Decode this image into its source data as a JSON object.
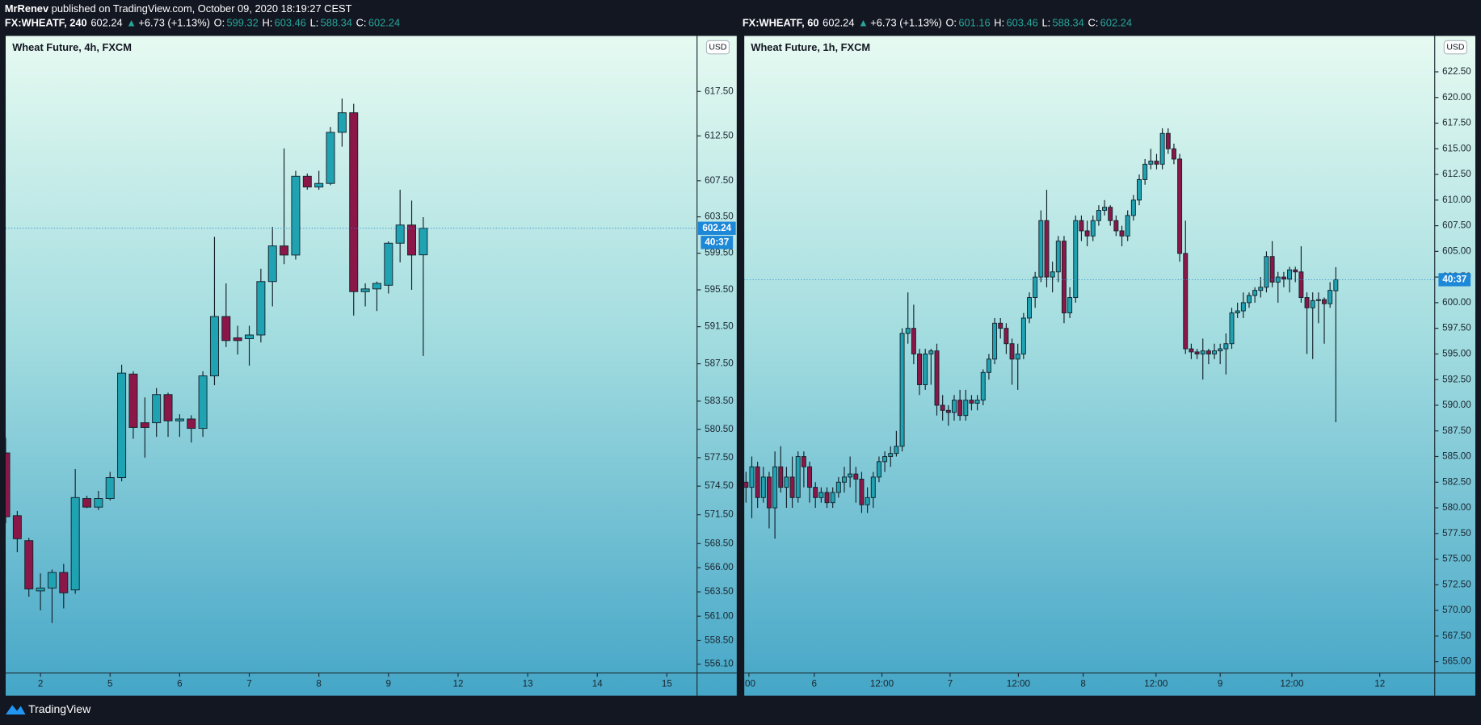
{
  "header": {
    "author": "MrRenev",
    "published": "published on TradingView.com, October 09, 2020 18:19:27 CEST"
  },
  "footer": {
    "brand": "TradingView"
  },
  "chart_data": [
    {
      "type": "candlestick",
      "title": "Wheat Future, 4h, FXCM",
      "info": [
        {
          "text": "FX:WHEATF, 240",
          "color": "#ffffff"
        },
        {
          "text": "602.24",
          "color": "#ffffff"
        },
        {
          "text": "▲",
          "color": "#26a69a"
        },
        {
          "text": "+6.73 (+1.13%)",
          "color": "#ffffff"
        },
        {
          "text": "O:",
          "color": "#ffffff"
        },
        {
          "text": "599.32",
          "color": "#26a69a"
        },
        {
          "text": "H:",
          "color": "#ffffff"
        },
        {
          "text": "603.46",
          "color": "#26a69a"
        },
        {
          "text": "L:",
          "color": "#ffffff"
        },
        {
          "text": "588.34",
          "color": "#26a69a"
        },
        {
          "text": "C:",
          "color": "#ffffff"
        },
        {
          "text": "602.24",
          "color": "#26a69a"
        }
      ],
      "currency": "USD",
      "last_price": 602.24,
      "show_price_label": true,
      "countdown": "40:37",
      "log_scale": true,
      "up_color": "#1fa2b2",
      "down_color": "#8a1748",
      "open": [
        578.0,
        571.4,
        568.8,
        563.6,
        563.9,
        565.5,
        563.7,
        573.2,
        572.3,
        573.2,
        575.4,
        586.4,
        581.2,
        581.2,
        584.2,
        581.4,
        581.6,
        580.6,
        586.2,
        592.6,
        590.3,
        590.2,
        590.6,
        596.4,
        600.3,
        599.3,
        608.0,
        606.8,
        607.2,
        612.9,
        615.1,
        595.3,
        595.6,
        596.0,
        600.6,
        602.6,
        599.32
      ],
      "high": [
        579.6,
        571.9,
        569.1,
        565.4,
        565.8,
        566.4,
        576.3,
        573.5,
        574.0,
        576.0,
        587.4,
        586.7,
        583.9,
        584.9,
        584.4,
        582.1,
        582.0,
        586.7,
        601.3,
        596.2,
        591.6,
        591.6,
        597.8,
        602.4,
        611.1,
        608.6,
        608.3,
        608.6,
        613.5,
        616.7,
        616.1,
        596.2,
        596.4,
        600.8,
        606.5,
        605.3,
        603.46
      ],
      "low": [
        570.6,
        567.6,
        563.0,
        561.6,
        560.3,
        561.8,
        563.3,
        572.2,
        572.0,
        573.0,
        575.0,
        579.5,
        577.5,
        579.7,
        579.7,
        579.7,
        579.1,
        579.7,
        585.2,
        589.3,
        588.5,
        587.3,
        589.8,
        593.7,
        598.3,
        598.8,
        606.5,
        606.5,
        607.0,
        611.3,
        592.7,
        593.7,
        593.2,
        595.1,
        598.5,
        595.5,
        588.34
      ],
      "close": [
        571.3,
        569.0,
        563.8,
        563.9,
        565.5,
        563.4,
        573.3,
        572.3,
        573.2,
        575.4,
        586.5,
        580.7,
        580.7,
        584.2,
        581.4,
        581.6,
        580.6,
        586.2,
        592.6,
        590.0,
        590.0,
        590.6,
        596.4,
        600.3,
        599.3,
        608.0,
        606.8,
        607.2,
        612.9,
        615.1,
        595.3,
        595.6,
        596.2,
        600.6,
        602.6,
        599.3,
        602.24
      ],
      "xlim": [
        0,
        59.6
      ],
      "xticks": [
        {
          "value": 3,
          "label": "2"
        },
        {
          "value": 9,
          "label": "5"
        },
        {
          "value": 15,
          "label": "6"
        },
        {
          "value": 21,
          "label": "7"
        },
        {
          "value": 27,
          "label": "8"
        },
        {
          "value": 33,
          "label": "9"
        },
        {
          "value": 39,
          "label": "12"
        },
        {
          "value": 45,
          "label": "13"
        },
        {
          "value": 51,
          "label": "14"
        },
        {
          "value": 57,
          "label": "15"
        }
      ],
      "ylim": [
        555.2,
        623.8
      ],
      "yticks": [
        {
          "value": 617.5,
          "label": "617.50"
        },
        {
          "value": 612.5,
          "label": "612.50"
        },
        {
          "value": 607.5,
          "label": "607.50"
        },
        {
          "value": 603.5,
          "label": "603.50"
        },
        {
          "value": 599.5,
          "label": "599.50"
        },
        {
          "value": 595.5,
          "label": "595.50"
        },
        {
          "value": 591.5,
          "label": "591.50"
        },
        {
          "value": 587.5,
          "label": "587.50"
        },
        {
          "value": 583.5,
          "label": "583.50"
        },
        {
          "value": 580.5,
          "label": "580.50"
        },
        {
          "value": 577.5,
          "label": "577.50"
        },
        {
          "value": 574.5,
          "label": "574.50"
        },
        {
          "value": 571.5,
          "label": "571.50"
        },
        {
          "value": 568.5,
          "label": "568.50"
        },
        {
          "value": 566,
          "label": "566.00"
        },
        {
          "value": 563.5,
          "label": "563.50"
        },
        {
          "value": 561,
          "label": "561.00"
        },
        {
          "value": 558.5,
          "label": "558.50"
        },
        {
          "value": 556.1,
          "label": "556.10"
        }
      ]
    },
    {
      "type": "candlestick",
      "title": "Wheat Future, 1h, FXCM",
      "info": [
        {
          "text": "FX:WHEATF, 60",
          "color": "#ffffff"
        },
        {
          "text": "602.24",
          "color": "#ffffff"
        },
        {
          "text": "▲",
          "color": "#26a69a"
        },
        {
          "text": "+6.73 (+1.13%)",
          "color": "#ffffff"
        },
        {
          "text": "O:",
          "color": "#ffffff"
        },
        {
          "text": "601.16",
          "color": "#26a69a"
        },
        {
          "text": "H:",
          "color": "#ffffff"
        },
        {
          "text": "603.46",
          "color": "#26a69a"
        },
        {
          "text": "L:",
          "color": "#ffffff"
        },
        {
          "text": "588.34",
          "color": "#26a69a"
        },
        {
          "text": "C:",
          "color": "#ffffff"
        },
        {
          "text": "602.24",
          "color": "#26a69a"
        }
      ],
      "currency": "USD",
      "last_price": 602.24,
      "show_price_label": false,
      "countdown": "40:37",
      "log_scale": false,
      "up_color": "#1fa2b2",
      "down_color": "#8a1748",
      "open": [
        582.5,
        582.0,
        584.0,
        581.0,
        583.0,
        580.0,
        584.0,
        582.0,
        583.0,
        581.0,
        585.0,
        584.0,
        582.0,
        581.0,
        581.5,
        580.5,
        581.5,
        582.5,
        583.0,
        583.3,
        582.8,
        580.3,
        581.0,
        583.0,
        584.5,
        585.0,
        585.3,
        586.0,
        597.0,
        597.5,
        595.0,
        592.0,
        595.0,
        595.3,
        590.0,
        589.5,
        589.3,
        590.5,
        589.0,
        590.5,
        590.2,
        590.5,
        593.2,
        594.5,
        598.0,
        597.5,
        596.0,
        594.5,
        595.0,
        598.5,
        600.5,
        602.5,
        608.0,
        602.5,
        603.0,
        606.0,
        599.0,
        600.5,
        608.0,
        607.0,
        606.5,
        608.0,
        609.0,
        609.3,
        608.0,
        607.0,
        606.5,
        608.5,
        610.0,
        612.0,
        613.5,
        613.8,
        613.5,
        616.5,
        615.0,
        614.0,
        604.8,
        595.5,
        595.2,
        595.0,
        595.3,
        595.0,
        595.3,
        595.5,
        596.0,
        599.0,
        599.2,
        600.0,
        600.7,
        601.2,
        601.5,
        604.5,
        602.0,
        602.5,
        602.3,
        603.2,
        603.0,
        600.5,
        599.5,
        600.2,
        600.3,
        599.9,
        601.16
      ],
      "high": [
        583.5,
        585.0,
        584.5,
        584.0,
        583.5,
        585.5,
        586.0,
        584.0,
        585.0,
        585.5,
        585.5,
        584.5,
        582.5,
        582.0,
        582.0,
        582.0,
        583.0,
        584.0,
        585.0,
        584.0,
        583.5,
        582.0,
        583.5,
        585.0,
        585.5,
        586.0,
        587.5,
        597.5,
        601.0,
        599.8,
        595.5,
        595.5,
        595.5,
        596.0,
        591.0,
        590.0,
        591.0,
        591.5,
        591.5,
        591.0,
        591.0,
        593.5,
        595.0,
        598.5,
        598.5,
        598.0,
        596.5,
        596.0,
        599.0,
        601.0,
        603.0,
        609.0,
        611.0,
        604.0,
        606.5,
        606.5,
        601.5,
        608.5,
        608.5,
        608.0,
        608.5,
        609.5,
        610.0,
        609.5,
        608.5,
        607.5,
        609.0,
        610.5,
        612.5,
        614.0,
        615.0,
        614.5,
        617.0,
        617.0,
        615.5,
        614.5,
        608.0,
        596.0,
        595.5,
        596.5,
        595.5,
        596.0,
        596.0,
        597.0,
        599.5,
        600.0,
        601.0,
        601.0,
        601.5,
        602.5,
        605.0,
        606.0,
        603.0,
        603.0,
        603.5,
        603.5,
        605.5,
        601.0,
        601.0,
        601.0,
        600.5,
        602.0,
        603.46
      ],
      "low": [
        580.5,
        579.0,
        580.0,
        580.5,
        578.0,
        577.0,
        581.5,
        580.0,
        580.0,
        580.5,
        582.0,
        580.5,
        580.0,
        580.5,
        580.0,
        580.0,
        581.0,
        581.5,
        582.0,
        580.5,
        579.5,
        579.5,
        580.0,
        582.5,
        583.5,
        584.0,
        585.0,
        585.5,
        596.0,
        594.0,
        591.0,
        591.5,
        592.0,
        589.0,
        588.5,
        588.0,
        588.5,
        588.5,
        588.5,
        589.5,
        589.5,
        590.0,
        592.5,
        594.0,
        596.5,
        595.0,
        592.0,
        591.5,
        594.5,
        598.0,
        599.5,
        602.0,
        601.5,
        601.0,
        602.0,
        598.0,
        598.5,
        600.0,
        606.0,
        605.5,
        606.0,
        607.5,
        608.5,
        607.5,
        606.5,
        605.5,
        606.0,
        608.0,
        609.5,
        611.5,
        613.0,
        613.0,
        613.0,
        614.5,
        613.5,
        604.0,
        595.0,
        594.5,
        594.5,
        592.5,
        594.0,
        594.5,
        594.0,
        593.0,
        595.5,
        598.5,
        598.5,
        599.5,
        600.0,
        600.5,
        601.0,
        601.5,
        600.0,
        601.5,
        601.0,
        602.0,
        600.0,
        595.0,
        594.5,
        598.0,
        596.0,
        599.5,
        588.34
      ],
      "close": [
        582.0,
        584.0,
        581.0,
        583.0,
        580.0,
        584.0,
        582.0,
        583.0,
        581.0,
        585.0,
        584.0,
        582.0,
        581.0,
        581.5,
        580.5,
        581.5,
        582.5,
        583.0,
        583.3,
        582.8,
        580.3,
        581.0,
        583.0,
        584.5,
        585.0,
        585.3,
        586.0,
        597.0,
        597.5,
        595.0,
        592.0,
        595.0,
        595.3,
        590.0,
        589.5,
        589.3,
        590.5,
        589.0,
        590.5,
        590.2,
        590.5,
        593.2,
        594.5,
        598.0,
        597.5,
        596.0,
        594.5,
        595.0,
        598.5,
        600.5,
        602.5,
        608.0,
        602.5,
        603.0,
        606.0,
        599.0,
        600.5,
        608.0,
        607.0,
        606.5,
        608.0,
        609.0,
        609.3,
        608.0,
        607.0,
        606.5,
        608.5,
        610.0,
        612.0,
        613.5,
        613.8,
        613.5,
        616.5,
        615.0,
        614.0,
        604.8,
        595.5,
        595.2,
        595.0,
        595.3,
        595.0,
        595.3,
        595.5,
        596.0,
        599.0,
        599.2,
        600.0,
        600.7,
        601.2,
        601.5,
        604.5,
        602.0,
        602.5,
        602.3,
        603.2,
        603.0,
        600.5,
        599.5,
        600.2,
        600.3,
        599.9,
        601.2,
        602.24
      ],
      "xlim": [
        -0.3,
        119.1
      ],
      "xticks": [
        {
          "value": 0.5,
          "label": ":00"
        },
        {
          "value": 11.8,
          "label": "6"
        },
        {
          "value": 23.5,
          "label": "12:00"
        },
        {
          "value": 35.3,
          "label": "7"
        },
        {
          "value": 47.1,
          "label": "12:00"
        },
        {
          "value": 58.3,
          "label": "8"
        },
        {
          "value": 70.9,
          "label": "12:00"
        },
        {
          "value": 82,
          "label": "9"
        },
        {
          "value": 94.4,
          "label": "12:00"
        },
        {
          "value": 109.6,
          "label": "12"
        }
      ],
      "ylim": [
        563.9,
        626.0
      ],
      "yticks": [
        {
          "value": 622.5,
          "label": "622.50"
        },
        {
          "value": 620,
          "label": "620.00"
        },
        {
          "value": 617.5,
          "label": "617.50"
        },
        {
          "value": 615,
          "label": "615.00"
        },
        {
          "value": 612.5,
          "label": "612.50"
        },
        {
          "value": 610,
          "label": "610.00"
        },
        {
          "value": 607.5,
          "label": "607.50"
        },
        {
          "value": 605,
          "label": "605.00"
        },
        {
          "value": 602.5,
          "label": "602.50"
        },
        {
          "value": 600,
          "label": "600.00"
        },
        {
          "value": 597.5,
          "label": "597.50"
        },
        {
          "value": 595,
          "label": "595.00"
        },
        {
          "value": 592.5,
          "label": "592.50"
        },
        {
          "value": 590,
          "label": "590.00"
        },
        {
          "value": 587.5,
          "label": "587.50"
        },
        {
          "value": 585,
          "label": "585.00"
        },
        {
          "value": 582.5,
          "label": "582.50"
        },
        {
          "value": 580,
          "label": "580.00"
        },
        {
          "value": 577.5,
          "label": "577.50"
        },
        {
          "value": 575,
          "label": "575.00"
        },
        {
          "value": 572.5,
          "label": "572.50"
        },
        {
          "value": 570,
          "label": "570.00"
        },
        {
          "value": 567.5,
          "label": "567.50"
        },
        {
          "value": 565,
          "label": "565.00"
        }
      ]
    }
  ]
}
